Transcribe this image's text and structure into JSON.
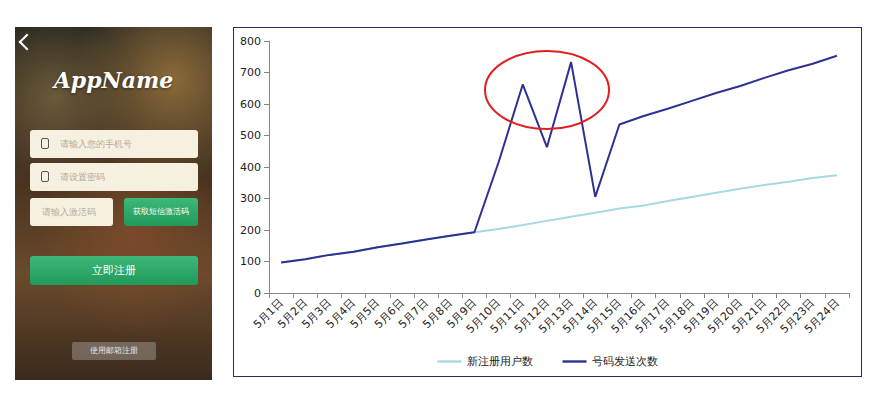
{
  "chart_data": {
    "type": "line",
    "categories": [
      "5月1日",
      "5月2日",
      "5月3日",
      "5月4日",
      "5月5日",
      "5月6日",
      "5月7日",
      "5月8日",
      "5月9日",
      "5月10日",
      "5月11日",
      "5月12日",
      "5月13日",
      "5月14日",
      "5月15日",
      "5月16日",
      "5月17日",
      "5月18日",
      "5月19日",
      "5月20日",
      "5月21日",
      "5月22日",
      "5月23日",
      "5月24日"
    ],
    "series": [
      {
        "name": "新注册用户数",
        "color": "#a9d9e0",
        "values": [
          97,
          107,
          121,
          131,
          145,
          157,
          170,
          182,
          193,
          203,
          216,
          229,
          242,
          255,
          268,
          278,
          292,
          305,
          318,
          331,
          343,
          353,
          365,
          374
        ]
      },
      {
        "name": "号码发送次数",
        "color": "#2e3192",
        "values": [
          97,
          107,
          121,
          131,
          145,
          157,
          170,
          182,
          193,
          415,
          662,
          463,
          733,
          305,
          535,
          562,
          585,
          610,
          635,
          657,
          683,
          707,
          728,
          753
        ]
      }
    ],
    "ylim": [
      0,
      800
    ],
    "yticks": [
      0,
      100,
      200,
      300,
      400,
      500,
      600,
      700,
      800
    ],
    "grid": false,
    "legend": "bottom",
    "marker": "none"
  },
  "phone_screen": {
    "app_name": "AppName",
    "inputs": [
      "请输入您的手机号",
      "请设置密码",
      "请输入激活码"
    ],
    "sms_button": "获取短信激活码",
    "register_button": "立即注册",
    "email_link": "使用邮箱注册"
  }
}
